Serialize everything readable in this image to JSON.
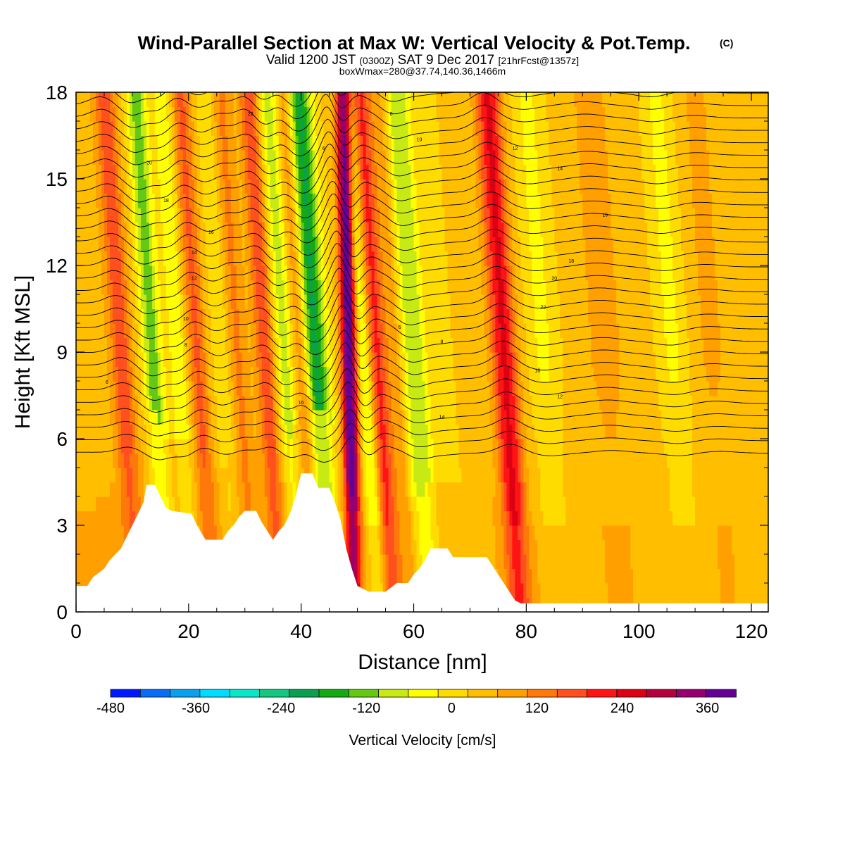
{
  "title": "Wind-Parallel Section at Max W: Vertical Velocity & Pot.Temp.",
  "title_mark": "(C)",
  "subtitle_parts": [
    "Valid 1200 JST",
    "(0300Z)",
    "SAT 9 Dec 2017",
    "[21hrFcst@1357z]"
  ],
  "subtitle3": "boxWmax=280@37.74,140.36,1466m",
  "chart_data": {
    "type": "heatmap",
    "xlabel": "Distance [nm]",
    "ylabel": "Height [Kft MSL]",
    "xlim": [
      0,
      123
    ],
    "ylim": [
      0,
      18
    ],
    "x_ticks": [
      0,
      20,
      40,
      60,
      80,
      100,
      120
    ],
    "y_ticks": [
      0,
      3,
      6,
      9,
      12,
      15,
      18
    ],
    "grid": false,
    "colorbar": {
      "label": "Vertical Velocity [cm/s]",
      "placement": "bottom",
      "min": -480,
      "max": 400,
      "step": 40,
      "tick_labels": [
        -480,
        -360,
        -240,
        -120,
        0,
        120,
        240,
        360
      ],
      "colors": [
        "#0018ff",
        "#0a6df5",
        "#0aa0f0",
        "#00dcff",
        "#0ae6c8",
        "#14c882",
        "#0aa050",
        "#14aa14",
        "#64c814",
        "#c8ea14",
        "#ffff00",
        "#ffdc00",
        "#ffbe00",
        "#ffa000",
        "#ff780a",
        "#ff501e",
        "#ff1414",
        "#dc0014",
        "#b4003c",
        "#96006e",
        "#640096"
      ]
    },
    "vertical_velocity_bands": [
      {
        "x": 1,
        "w": 5,
        "v": 20
      },
      {
        "x": 9,
        "w": 2,
        "v": 130
      },
      {
        "x": 14.5,
        "w": 1.8,
        "v": -150
      },
      {
        "x": 19,
        "w": 1.6,
        "v": -80
      },
      {
        "x": 22.5,
        "w": 1.6,
        "v": 120
      },
      {
        "x": 27,
        "w": 1.6,
        "v": -60
      },
      {
        "x": 29.5,
        "w": 2,
        "v": 80
      },
      {
        "x": 34.5,
        "w": 1.6,
        "v": 140
      },
      {
        "x": 38,
        "w": 1.6,
        "v": -110
      },
      {
        "x": 41,
        "w": 1.5,
        "v": 90
      },
      {
        "x": 43.5,
        "w": 2.2,
        "v": -220
      },
      {
        "x": 48.8,
        "w": 1.3,
        "v": 380
      },
      {
        "x": 52,
        "w": 1.3,
        "v": -100
      },
      {
        "x": 54.5,
        "w": 1.6,
        "v": 160
      },
      {
        "x": 57.5,
        "w": 1.4,
        "v": 60
      },
      {
        "x": 61,
        "w": 2.2,
        "v": -130
      },
      {
        "x": 66,
        "w": 1.8,
        "v": -30
      },
      {
        "x": 77,
        "w": 2.2,
        "v": 200
      },
      {
        "x": 84,
        "w": 2.5,
        "v": -60
      },
      {
        "x": 95,
        "w": 3,
        "v": 60
      },
      {
        "x": 107,
        "w": 2.5,
        "v": -60
      },
      {
        "x": 114,
        "w": 3,
        "v": 40
      }
    ],
    "terrain": [
      [
        0,
        0.9
      ],
      [
        2,
        0.9
      ],
      [
        3,
        1.2
      ],
      [
        5,
        1.5
      ],
      [
        6,
        1.8
      ],
      [
        8,
        2.2
      ],
      [
        9,
        2.6
      ],
      [
        10,
        3.0
      ],
      [
        11,
        3.4
      ],
      [
        12,
        3.8
      ],
      [
        12.5,
        4.4
      ],
      [
        14,
        4.4
      ],
      [
        16,
        3.6
      ],
      [
        17,
        3.5
      ],
      [
        20.5,
        3.4
      ],
      [
        21.5,
        3.0
      ],
      [
        23,
        2.5
      ],
      [
        26,
        2.5
      ],
      [
        27,
        2.8
      ],
      [
        28,
        3.0
      ],
      [
        29,
        3.3
      ],
      [
        30,
        3.5
      ],
      [
        32,
        3.5
      ],
      [
        33,
        3.1
      ],
      [
        34,
        2.8
      ],
      [
        35,
        2.5
      ],
      [
        36,
        2.8
      ],
      [
        37,
        3.0
      ],
      [
        38,
        3.4
      ],
      [
        39,
        4.0
      ],
      [
        40,
        4.8
      ],
      [
        42,
        4.8
      ],
      [
        43,
        4.3
      ],
      [
        45,
        4.3
      ],
      [
        46,
        3.8
      ],
      [
        47,
        3.2
      ],
      [
        48,
        2.2
      ],
      [
        49,
        1.5
      ],
      [
        50,
        0.9
      ],
      [
        52,
        0.7
      ],
      [
        55,
        0.7
      ],
      [
        57,
        1.0
      ],
      [
        59,
        1.0
      ],
      [
        60,
        1.3
      ],
      [
        61,
        1.5
      ],
      [
        62,
        1.8
      ],
      [
        63,
        2.2
      ],
      [
        66,
        2.2
      ],
      [
        67,
        1.9
      ],
      [
        73,
        1.9
      ],
      [
        74,
        1.6
      ],
      [
        75,
        1.3
      ],
      [
        76,
        1.0
      ],
      [
        77,
        0.7
      ],
      [
        78,
        0.4
      ],
      [
        79,
        0.3
      ],
      [
        123,
        0.3
      ]
    ],
    "theta_labels": [
      "6",
      "8",
      "10",
      "12",
      "14",
      "16",
      "18",
      "20",
      "22"
    ]
  }
}
